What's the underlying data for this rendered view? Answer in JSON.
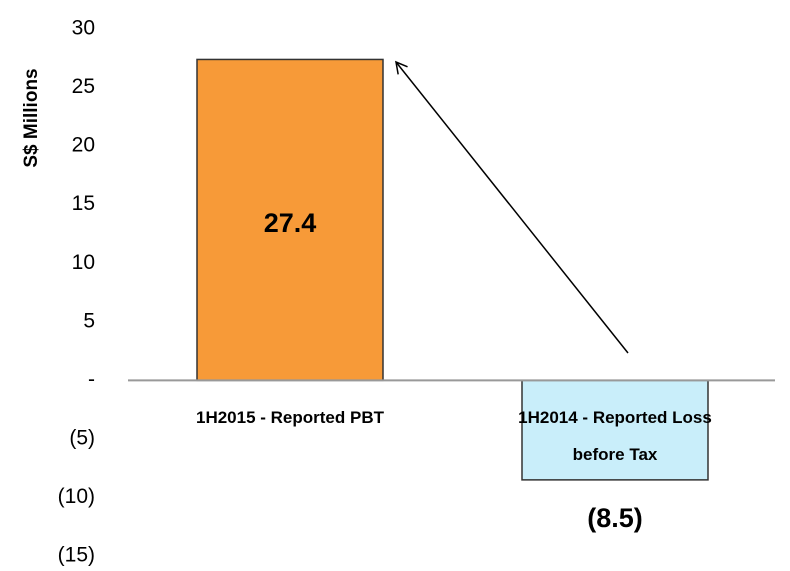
{
  "chart_data": {
    "type": "bar",
    "y_label": "S$ Millions",
    "categories": [
      "1H2015 - Reported PBT",
      "1H2014 - Reported Loss before Tax"
    ],
    "values": [
      27.4,
      -8.5
    ],
    "value_labels": [
      "27.4",
      "(8.5)"
    ],
    "colors": [
      "#f79a38",
      "#c9eefa"
    ],
    "ylim": [
      -15,
      30
    ],
    "yticks": [
      {
        "value": -15,
        "label": "(15)"
      },
      {
        "value": -10,
        "label": "(10)"
      },
      {
        "value": -5,
        "label": "(5)"
      },
      {
        "value": 0,
        "label": "-"
      },
      5,
      10,
      15,
      20,
      25,
      30
    ]
  }
}
